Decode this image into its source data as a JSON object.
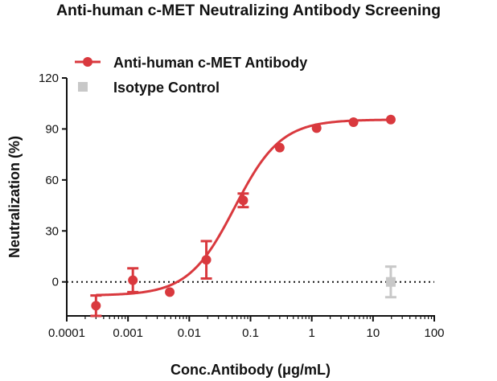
{
  "chart_data": {
    "type": "scatter",
    "title": "Anti-human c-MET Neutralizing Antibody Screening",
    "xlabel": "Conc.Antibody (μg/mL)",
    "ylabel": "Neutralization (%)",
    "x_scale": "log",
    "xlim": [
      0.0001,
      100
    ],
    "ylim": [
      -20,
      120
    ],
    "x_ticks": [
      0.0001,
      0.001,
      0.01,
      0.1,
      1,
      10,
      100
    ],
    "x_tick_labels": [
      "0.0001",
      "0.001",
      "0.01",
      "0.1",
      "1",
      "10",
      "100"
    ],
    "y_ticks": [
      0,
      30,
      60,
      90,
      120
    ],
    "y_tick_labels": [
      "0",
      "30",
      "60",
      "90",
      "120"
    ],
    "reference_line": {
      "y": 0,
      "style": "dotted"
    },
    "legend_position": "top-left",
    "grid": false,
    "series": [
      {
        "name": "Anti-human c-MET Antibody",
        "color": "#d9393e",
        "marker": "circle",
        "fit": "sigmoidal",
        "points": [
          {
            "x": 0.0003,
            "y": -14,
            "err": 6
          },
          {
            "x": 0.0012,
            "y": 1,
            "err": 7
          },
          {
            "x": 0.0048,
            "y": -6,
            "err": 0
          },
          {
            "x": 0.019,
            "y": 13,
            "err": 11
          },
          {
            "x": 0.076,
            "y": 48,
            "err": 4
          },
          {
            "x": 0.3,
            "y": 79,
            "err": 0
          },
          {
            "x": 1.2,
            "y": 90.5,
            "err": 0
          },
          {
            "x": 4.8,
            "y": 94,
            "err": 0
          },
          {
            "x": 19.5,
            "y": 95.5,
            "err": 0
          }
        ]
      },
      {
        "name": "Isotype Control",
        "color": "#c8c8c8",
        "marker": "square",
        "points": [
          {
            "x": 19.5,
            "y": 0,
            "err": 9
          }
        ]
      }
    ]
  }
}
